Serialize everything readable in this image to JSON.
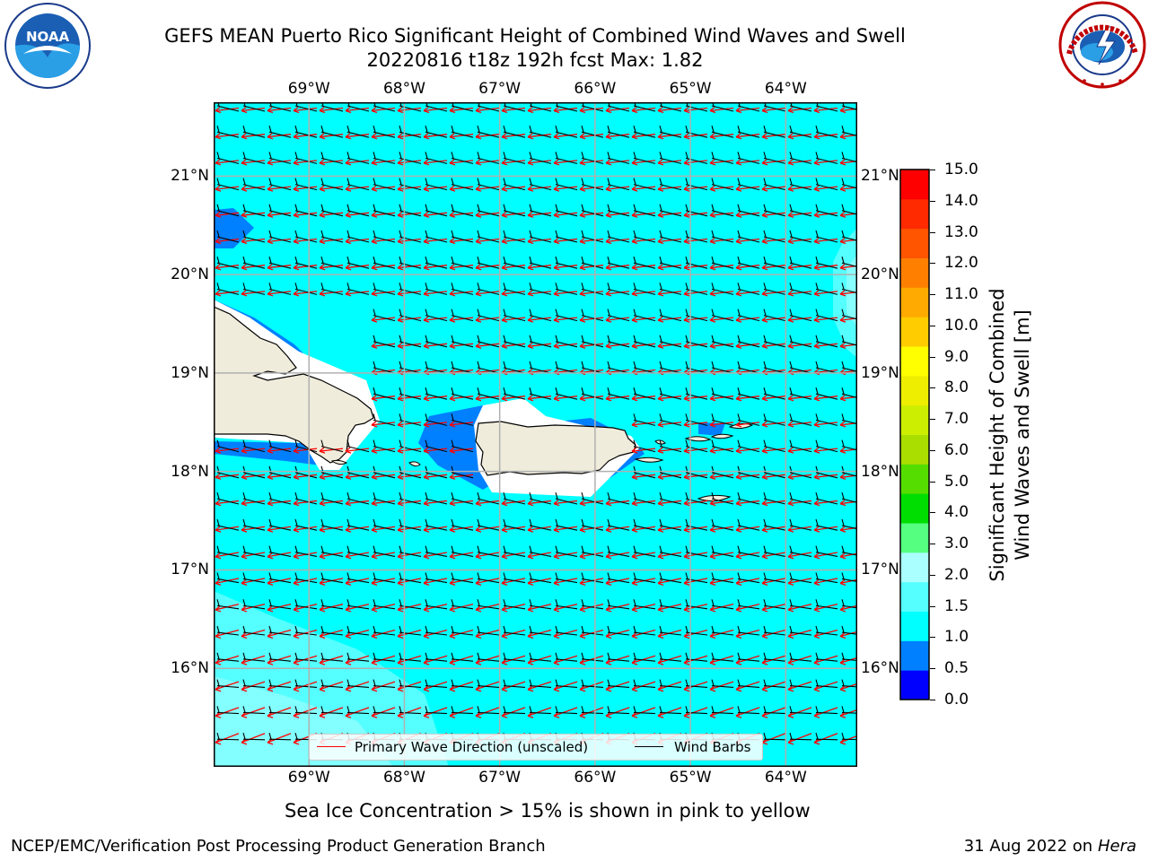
{
  "title": {
    "line1": "GEFS MEAN Puerto Rico Significant Height of Combined Wind Waves and Swell",
    "line2": "20220816 t18z 192h fcst   Max: 1.82"
  },
  "logos": {
    "left": {
      "name": "noaa-logo",
      "text": "NOAA"
    },
    "right": {
      "name": "nws-logo",
      "text": "NATIONAL WEATHER SERVICE"
    }
  },
  "map": {
    "lon_ticks": [
      "69°W",
      "68°W",
      "67°W",
      "66°W",
      "65°W",
      "64°W"
    ],
    "lat_ticks": [
      "21°N",
      "20°N",
      "19°N",
      "18°N",
      "17°N",
      "16°N"
    ],
    "lon_range": [
      -70,
      -63.25
    ],
    "lat_range": [
      15.0,
      21.75
    ],
    "grid": true,
    "colors": {
      "sea_main": "#00ffff",
      "sea_light": "#55ffff",
      "sea_lighter": "#aaffff",
      "shelter_blue": "#0080ff",
      "land": "#f0ecdc",
      "coast": "#000000",
      "wave_arrows": "#ff0000",
      "wind_barbs": "#000000"
    }
  },
  "legend": {
    "primary_wave": "Primary Wave Direction (unscaled)",
    "wind_barbs": "Wind Barbs",
    "wave_color": "#ff0000",
    "barb_color": "#000000"
  },
  "colorbar": {
    "label_line1": "Significant Height of Combined",
    "label_line2": "Wind Waves and Swell [m]",
    "ticks": [
      "0.0",
      "0.5",
      "1.0",
      "1.5",
      "2.0",
      "3.0",
      "4.0",
      "5.0",
      "6.0",
      "7.0",
      "8.0",
      "9.0",
      "10.0",
      "11.0",
      "12.0",
      "13.0",
      "14.0",
      "15.0"
    ],
    "colors": [
      "#0000ff",
      "#0080ff",
      "#00ffff",
      "#55ffff",
      "#aaffff",
      "#55ff80",
      "#00dd00",
      "#55dd00",
      "#aadd00",
      "#ccee00",
      "#eeee00",
      "#ffff00",
      "#ffcc00",
      "#ffaa00",
      "#ff8000",
      "#ff5500",
      "#ff2a00",
      "#ff0000"
    ]
  },
  "note": "Sea Ice Concentration > 15% is shown in pink to yellow",
  "footer": {
    "left": "NCEP/EMC/Verification Post Processing Product Generation Branch",
    "date": "31 Aug 2022 on",
    "host": "Hera"
  }
}
